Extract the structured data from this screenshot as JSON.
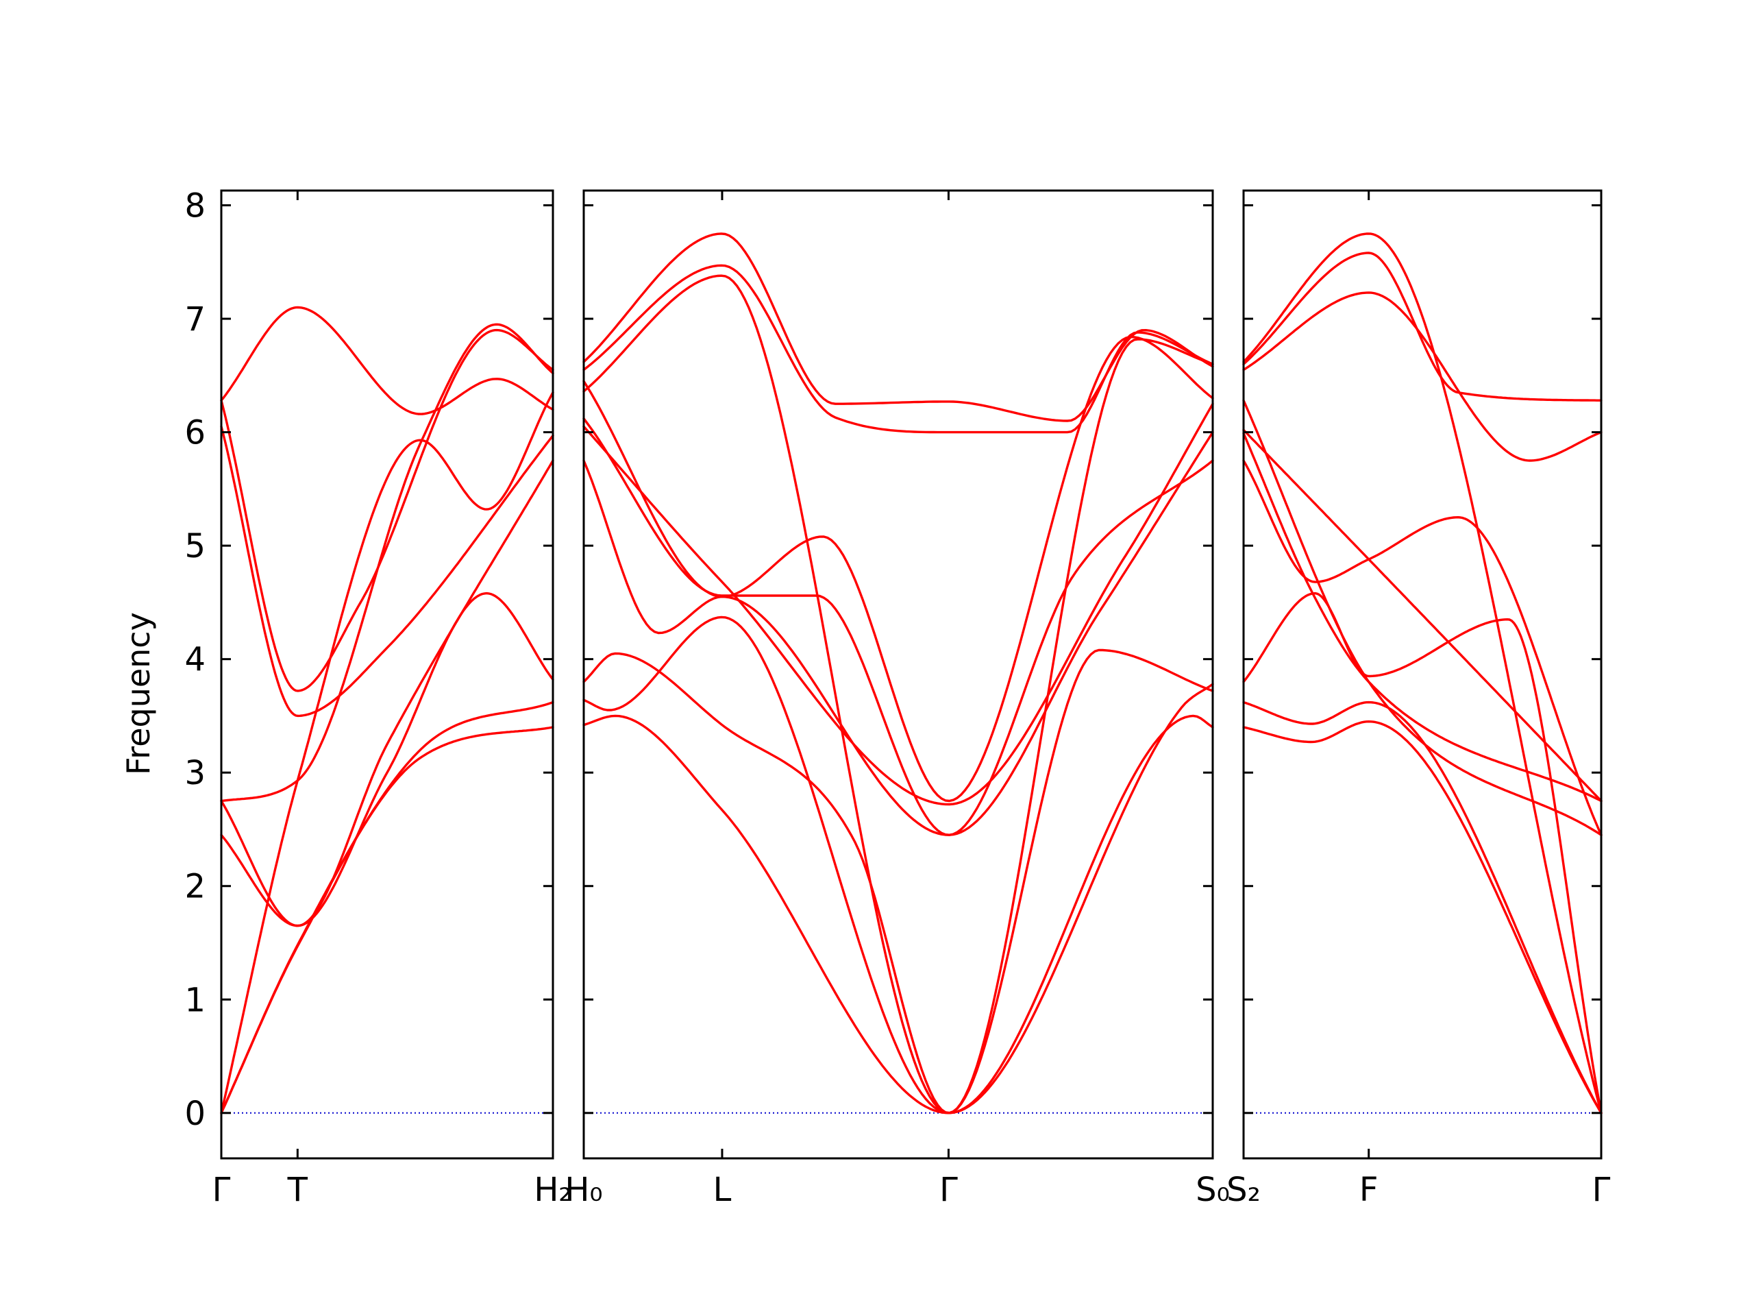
{
  "chart_data": {
    "type": "line",
    "ylabel": "Frequency",
    "ylim": [
      -0.4,
      8.13
    ],
    "yticks": [
      0,
      1,
      2,
      3,
      4,
      5,
      6,
      7,
      8
    ],
    "band_color": "#ff0000",
    "zero_line_color": "#0000cc",
    "panels": [
      {
        "id": "left",
        "xticks": [
          "Γ",
          "T",
          "H₂"
        ],
        "band_knots": [
          {
            "x": [
              0,
              0.23,
              0.6,
              1
            ],
            "y": [
              0,
              1.47,
              3.13,
              3.4
            ]
          },
          {
            "x": [
              0,
              0.23,
              0.6,
              1
            ],
            "y": [
              0,
              1.48,
              3.2,
              3.62
            ]
          },
          {
            "x": [
              0,
              0.23,
              0.5,
              1
            ],
            "y": [
              2.45,
              1.65,
              3.25,
              5.75
            ]
          },
          {
            "x": [
              0,
              0.23,
              0.5,
              0.8,
              1
            ],
            "y": [
              2.75,
              1.65,
              3.0,
              4.58,
              3.82
            ]
          },
          {
            "x": [
              0,
              0.23,
              0.5,
              1
            ],
            "y": [
              6.05,
              3.5,
              4.1,
              5.97
            ]
          },
          {
            "x": [
              0,
              0.23,
              0.6,
              0.8,
              1
            ],
            "y": [
              0,
              2.93,
              5.93,
              5.32,
              6.35
            ]
          },
          {
            "x": [
              0,
              0.23,
              0.6,
              0.83,
              1
            ],
            "y": [
              2.75,
              2.93,
              5.9,
              6.95,
              6.52
            ]
          },
          {
            "x": [
              0,
              0.23,
              0.42,
              0.83,
              1
            ],
            "y": [
              6.28,
              3.72,
              4.5,
              6.9,
              6.55
            ]
          },
          {
            "x": [
              0,
              0.23,
              0.6,
              0.83,
              1
            ],
            "y": [
              6.28,
              7.1,
              6.16,
              6.47,
              6.2
            ]
          }
        ]
      },
      {
        "id": "middle",
        "xticks": [
          "H₀",
          "L",
          "Γ",
          "S₀"
        ],
        "band_knots": [
          {
            "x": [
              0,
              0.05,
              0.22,
              0.58,
              0.97,
              1
            ],
            "y": [
              3.42,
              3.5,
              2.67,
              0,
              3.5,
              3.4
            ]
          },
          {
            "x": [
              0,
              0.04,
              0.22,
              0.58,
              0.95,
              1
            ],
            "y": [
              3.64,
              3.55,
              4.37,
              0,
              3.57,
              3.78
            ]
          },
          {
            "x": [
              0,
              0.05,
              0.22,
              0.43,
              0.58,
              0.82,
              1
            ],
            "y": [
              3.8,
              4.05,
              3.42,
              2.4,
              0,
              4.08,
              3.72
            ]
          },
          {
            "x": [
              0,
              0.12,
              0.22,
              0.58,
              0.82,
              1
            ],
            "y": [
              5.75,
              4.23,
              4.55,
              2.45,
              4.42,
              6.0
            ]
          },
          {
            "x": [
              0,
              0.22,
              0.58,
              0.86,
              1
            ],
            "y": [
              6.05,
              4.68,
              2.72,
              4.9,
              6.25
            ]
          },
          {
            "x": [
              0,
              0.22,
              0.37,
              0.58,
              0.78,
              1
            ],
            "y": [
              6.12,
              4.56,
              4.56,
              2.45,
              4.75,
              5.75
            ]
          },
          {
            "x": [
              0,
              0.22,
              0.38,
              0.58,
              0.87,
              1
            ],
            "y": [
              6.45,
              4.55,
              5.08,
              2.75,
              6.84,
              6.3
            ]
          },
          {
            "x": [
              0,
              0.22,
              0.58,
              0.88,
              1
            ],
            "y": [
              6.36,
              7.38,
              0,
              6.82,
              6.6
            ]
          },
          {
            "x": [
              0,
              0.22,
              0.4,
              0.58,
              0.77,
              0.88,
              1
            ],
            "y": [
              6.55,
              7.47,
              6.13,
              6.0,
              6.0,
              6.88,
              6.6
            ]
          },
          {
            "x": [
              0,
              0.22,
              0.4,
              0.58,
              0.77,
              0.89,
              1
            ],
            "y": [
              6.62,
              7.75,
              6.25,
              6.27,
              6.1,
              6.9,
              6.58
            ]
          }
        ]
      },
      {
        "id": "right",
        "xticks": [
          "S₂",
          "F",
          "Γ"
        ],
        "band_knots": [
          {
            "x": [
              0,
              0.19,
              0.35,
              1
            ],
            "y": [
              3.4,
              3.27,
              3.45,
              0
            ]
          },
          {
            "x": [
              0,
              0.19,
              0.35,
              1
            ],
            "y": [
              3.62,
              3.43,
              3.62,
              0
            ]
          },
          {
            "x": [
              0,
              0.2,
              0.35,
              0.74,
              1
            ],
            "y": [
              3.8,
              4.58,
              3.85,
              4.35,
              0
            ]
          },
          {
            "x": [
              0,
              0.2,
              0.35,
              0.6,
              1
            ],
            "y": [
              5.75,
              4.68,
              4.88,
              5.25,
              2.45
            ]
          },
          {
            "x": [
              0,
              0.19,
              0.35,
              1
            ],
            "y": [
              5.99,
              4.6,
              3.8,
              2.75
            ]
          },
          {
            "x": [
              0,
              0.35,
              1
            ],
            "y": [
              6.02,
              4.88,
              2.75
            ]
          },
          {
            "x": [
              0,
              0.35,
              1
            ],
            "y": [
              6.28,
              3.8,
              2.45
            ]
          },
          {
            "x": [
              0,
              0.35,
              0.8,
              1
            ],
            "y": [
              6.55,
              7.23,
              5.75,
              6.0
            ]
          },
          {
            "x": [
              0,
              0.35,
              0.6,
              1
            ],
            "y": [
              6.6,
              7.58,
              6.35,
              6.28
            ]
          },
          {
            "x": [
              0,
              0.35,
              1
            ],
            "y": [
              6.62,
              7.75,
              0
            ]
          }
        ]
      }
    ]
  }
}
